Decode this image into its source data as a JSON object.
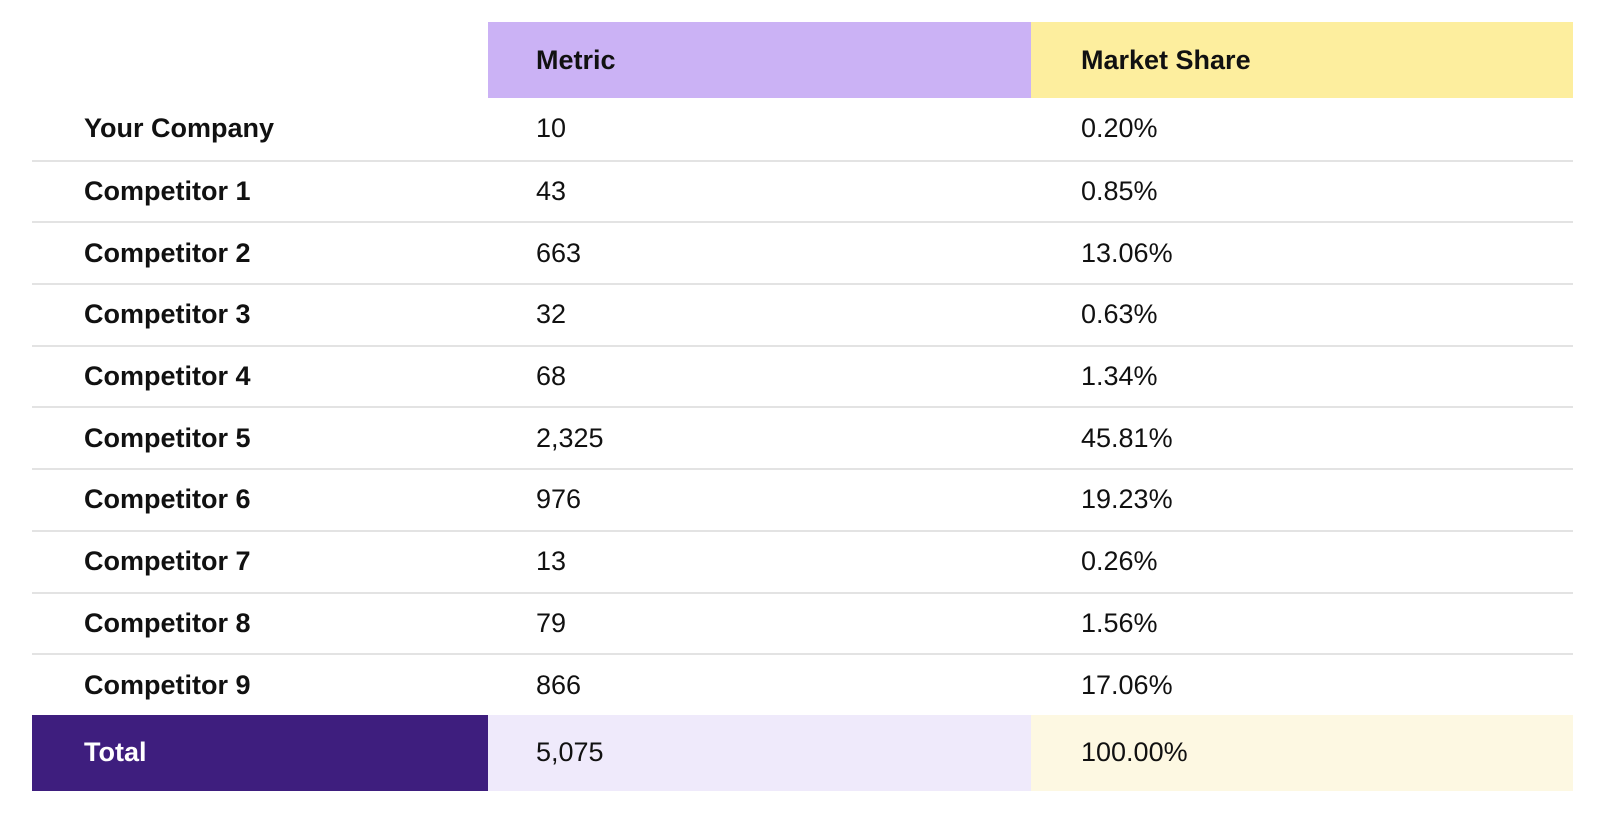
{
  "table": {
    "columns": [
      {
        "label": "Metric"
      },
      {
        "label": "Market Share"
      }
    ],
    "rows": [
      {
        "label": "Your Company",
        "metric": "10",
        "market_share": "0.20%"
      },
      {
        "label": "Competitor 1",
        "metric": "43",
        "market_share": "0.85%"
      },
      {
        "label": "Competitor 2",
        "metric": "663",
        "market_share": "13.06%"
      },
      {
        "label": "Competitor 3",
        "metric": "32",
        "market_share": "0.63%"
      },
      {
        "label": "Competitor 4",
        "metric": "68",
        "market_share": "1.34%"
      },
      {
        "label": "Competitor 5",
        "metric": "2,325",
        "market_share": "45.81%"
      },
      {
        "label": "Competitor 6",
        "metric": "976",
        "market_share": "19.23%"
      },
      {
        "label": "Competitor 7",
        "metric": "13",
        "market_share": "0.26%"
      },
      {
        "label": "Competitor 8",
        "metric": "79",
        "market_share": "1.56%"
      },
      {
        "label": "Competitor 9",
        "metric": "866",
        "market_share": "17.06%"
      }
    ],
    "total": {
      "label": "Total",
      "metric": "5,075",
      "market_share": "100.00%"
    }
  },
  "colors": {
    "header_metric_bg": "#cbb2f5",
    "header_share_bg": "#fdee9e",
    "total_label_bg": "#3e1e7e",
    "total_label_text": "#ffffff",
    "total_metric_bg": "#efeafb",
    "total_share_bg": "#fdf8e2",
    "divider_color": "#e3e3e3",
    "text_color": "#111111"
  },
  "chart_data": {
    "type": "table",
    "columns": [
      "",
      "Metric",
      "Market Share"
    ],
    "rows": [
      [
        "Your Company",
        10,
        "0.20%"
      ],
      [
        "Competitor 1",
        43,
        "0.85%"
      ],
      [
        "Competitor 2",
        663,
        "13.06%"
      ],
      [
        "Competitor 3",
        32,
        "0.63%"
      ],
      [
        "Competitor 4",
        68,
        "1.34%"
      ],
      [
        "Competitor 5",
        2325,
        "45.81%"
      ],
      [
        "Competitor 6",
        976,
        "19.23%"
      ],
      [
        "Competitor 7",
        13,
        "0.26%"
      ],
      [
        "Competitor 8",
        79,
        "1.56%"
      ],
      [
        "Competitor 9",
        866,
        "17.06%"
      ],
      [
        "Total",
        5075,
        "100.00%"
      ]
    ]
  }
}
